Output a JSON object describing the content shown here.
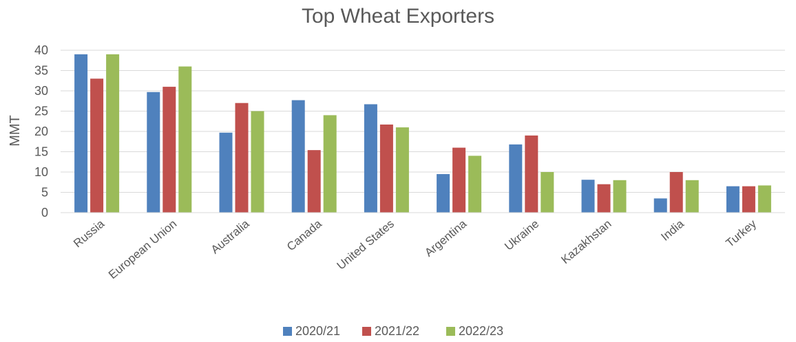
{
  "chart_data": {
    "type": "bar",
    "title": "Top Wheat Exporters",
    "xlabel": "",
    "ylabel": "MMT",
    "ylim": [
      0,
      40
    ],
    "yticks": [
      0,
      5,
      10,
      15,
      20,
      25,
      30,
      35,
      40
    ],
    "grid": true,
    "legend_position": "bottom",
    "categories": [
      "Russia",
      "European Union",
      "Australia",
      "Canada",
      "United States",
      "Argentina",
      "Ukraine",
      "Kazakhstan",
      "India",
      "Turkey"
    ],
    "series": [
      {
        "name": "2020/21",
        "color": "#4F81BD",
        "values": [
          39,
          29.7,
          19.7,
          27.7,
          26.7,
          9.5,
          16.8,
          8.1,
          3.5,
          6.5
        ]
      },
      {
        "name": "2021/22",
        "color": "#C0504D",
        "values": [
          33,
          31,
          27,
          15.4,
          21.7,
          16,
          19,
          7,
          10,
          6.5
        ]
      },
      {
        "name": "2022/23",
        "color": "#9BBB59",
        "values": [
          39,
          36,
          25,
          24,
          21,
          14,
          10,
          8,
          8,
          6.7
        ]
      }
    ]
  }
}
